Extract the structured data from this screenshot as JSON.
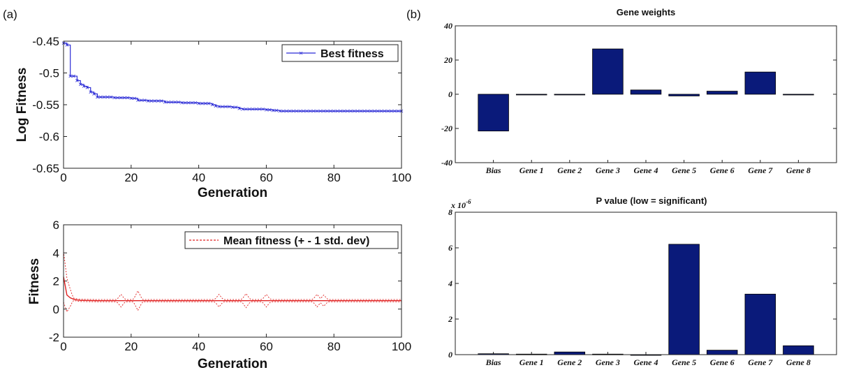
{
  "panels": {
    "a": "(a)",
    "b": "(b)"
  },
  "colors": {
    "best": "#2b2bd6",
    "mean": "#e02020",
    "bar": "#0a1a7a"
  },
  "chart_data": [
    {
      "type": "line",
      "ylabel": "Log Fitness",
      "xlabel": "Generation",
      "xlim": [
        0,
        100
      ],
      "ylim": [
        -0.65,
        -0.45
      ],
      "xticks": [
        0,
        20,
        40,
        60,
        80,
        100
      ],
      "yticks": [
        -0.65,
        -0.6,
        -0.55,
        -0.5,
        -0.45
      ],
      "xtick_labels": [
        "0",
        "20",
        "40",
        "60",
        "80",
        "100"
      ],
      "ytick_labels": [
        "-0.65",
        "-0.6",
        "-0.55",
        "-0.5",
        "-0.45"
      ],
      "legend": "top-right",
      "series": [
        {
          "name": "Best fitness",
          "x": [
            0,
            1,
            2,
            3,
            4,
            5,
            6,
            7,
            8,
            9,
            10,
            12,
            15,
            20,
            22,
            25,
            30,
            35,
            40,
            44,
            45,
            46,
            50,
            52,
            53,
            55,
            60,
            62,
            64,
            65,
            70,
            80,
            90,
            100
          ],
          "y": [
            -0.453,
            -0.456,
            -0.505,
            -0.505,
            -0.512,
            -0.518,
            -0.521,
            -0.523,
            -0.53,
            -0.533,
            -0.538,
            -0.538,
            -0.539,
            -0.54,
            -0.543,
            -0.544,
            -0.546,
            -0.547,
            -0.548,
            -0.55,
            -0.552,
            -0.553,
            -0.554,
            -0.556,
            -0.557,
            -0.557,
            -0.558,
            -0.559,
            -0.56,
            -0.56,
            -0.56,
            -0.56,
            -0.56,
            -0.56
          ]
        }
      ]
    },
    {
      "type": "line",
      "ylabel": "Fitness",
      "xlabel": "Generation",
      "xlim": [
        0,
        100
      ],
      "ylim": [
        -2,
        6
      ],
      "xticks": [
        0,
        20,
        40,
        60,
        80,
        100
      ],
      "yticks": [
        -2,
        0,
        2,
        4,
        6
      ],
      "xtick_labels": [
        "0",
        "20",
        "40",
        "60",
        "80",
        "100"
      ],
      "ytick_labels": [
        "-2",
        "0",
        "2",
        "4",
        "6"
      ],
      "legend": "top-right",
      "series": [
        {
          "name": "Mean fitness (+ - 1 std. dev)",
          "x": [
            0,
            1,
            2,
            3,
            4,
            5,
            10,
            20,
            30,
            40,
            50,
            60,
            70,
            80,
            90,
            100
          ],
          "y": [
            2.3,
            1.0,
            0.8,
            0.7,
            0.65,
            0.62,
            0.6,
            0.6,
            0.6,
            0.6,
            0.6,
            0.6,
            0.6,
            0.6,
            0.6,
            0.6
          ],
          "spikes_x": [
            17,
            22,
            46,
            54,
            60,
            75,
            77
          ],
          "spikes_sd": [
            0.45,
            0.7,
            0.45,
            0.5,
            0.45,
            0.45,
            0.4
          ]
        }
      ]
    },
    {
      "type": "bar",
      "title": "Gene weights",
      "categories": [
        "Bias",
        "Gene 1",
        "Gene 2",
        "Gene 3",
        "Gene 4",
        "Gene 5",
        "Gene 6",
        "Gene 7",
        "Gene 8"
      ],
      "values": [
        -21.5,
        0,
        0,
        26.5,
        2.5,
        -1.0,
        1.8,
        13.0,
        0
      ],
      "ylim": [
        -40,
        40
      ],
      "yticks": [
        -40,
        -20,
        0,
        20,
        40
      ],
      "ytick_labels": [
        "-40",
        "-20",
        "0",
        "20",
        "40"
      ]
    },
    {
      "type": "bar",
      "title": "P value (low = significant)",
      "y_multiplier": "x 10",
      "y_exponent": "-6",
      "categories": [
        "Bias",
        "Gene 1",
        "Gene 2",
        "Gene 3",
        "Gene 4",
        "Gene 5",
        "Gene 6",
        "Gene 7",
        "Gene 8"
      ],
      "values": [
        0.05,
        0.03,
        0.15,
        0.03,
        0,
        6.2,
        0.25,
        3.4,
        0.5
      ],
      "ylim": [
        0,
        8
      ],
      "yticks": [
        0,
        2,
        4,
        6,
        8
      ],
      "ytick_labels": [
        "0",
        "2",
        "4",
        "6",
        "8"
      ]
    }
  ]
}
